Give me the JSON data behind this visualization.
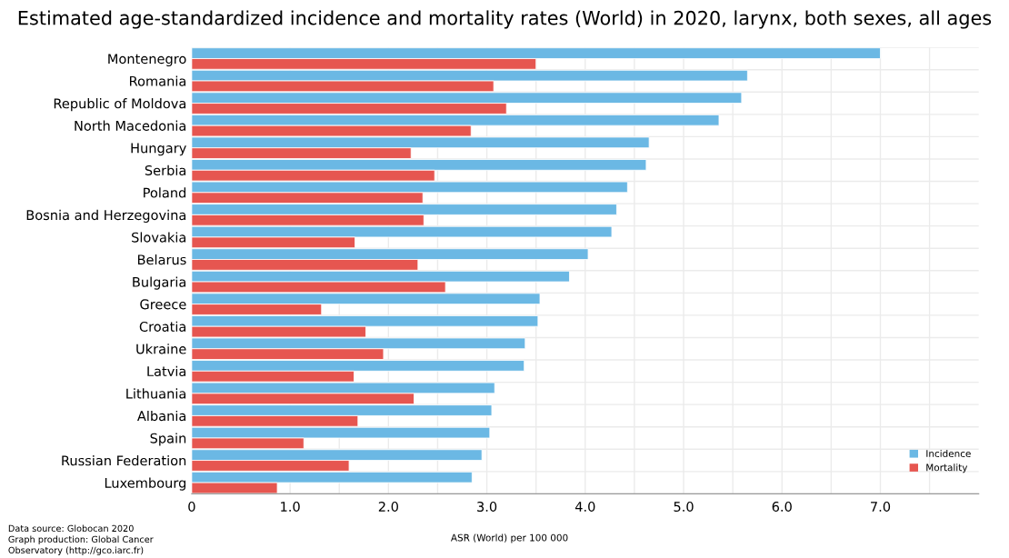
{
  "chart_data": {
    "type": "bar",
    "orientation": "horizontal",
    "title": "Estimated age-standardized incidence and mortality rates (World) in 2020, larynx, both sexes, all ages",
    "xlabel": "ASR (World) per 100 000",
    "categories": [
      "Montenegro",
      "Romania",
      "Republic of Moldova",
      "North Macedonia",
      "Hungary",
      "Serbia",
      "Poland",
      "Bosnia and Herzegovina",
      "Slovakia",
      "Belarus",
      "Bulgaria",
      "Greece",
      "Croatia",
      "Ukraine",
      "Latvia",
      "Lithuania",
      "Albania",
      "Spain",
      "Russian Federation",
      "Luxembourg"
    ],
    "series": [
      {
        "name": "Incidence",
        "color": "#6bb8e4",
        "values": [
          7.0,
          5.65,
          5.59,
          5.36,
          4.65,
          4.62,
          4.43,
          4.32,
          4.27,
          4.03,
          3.84,
          3.54,
          3.52,
          3.39,
          3.38,
          3.08,
          3.05,
          3.03,
          2.95,
          2.85
        ]
      },
      {
        "name": "Mortality",
        "color": "#e65650",
        "values": [
          3.5,
          3.07,
          3.2,
          2.84,
          2.23,
          2.47,
          2.35,
          2.36,
          1.66,
          2.3,
          2.58,
          1.32,
          1.77,
          1.95,
          1.65,
          2.26,
          1.69,
          1.14,
          1.6,
          0.87
        ]
      }
    ],
    "xlim": [
      0,
      8
    ],
    "xticks": [
      0,
      {
        "value": 1,
        "label": "1.0"
      },
      {
        "value": 1.5,
        "label": null
      },
      {
        "value": 2,
        "label": "2.0"
      },
      {
        "value": 2.5,
        "label": null
      },
      {
        "value": 3,
        "label": "3.0"
      },
      {
        "value": 3.5,
        "label": null
      },
      {
        "value": 4,
        "label": "4.0"
      },
      {
        "value": 4.5,
        "label": null
      },
      {
        "value": 5,
        "label": "5.0"
      },
      {
        "value": 5.5,
        "label": null
      },
      {
        "value": 6,
        "label": "6.0"
      },
      {
        "value": 6.5,
        "label": null
      },
      {
        "value": 7,
        "label": "7.0"
      },
      {
        "value": 7.5,
        "label": null
      }
    ],
    "grid": true,
    "legend": "bottom right",
    "annotations": [
      "Data source: Globocan 2020\nGraph production: Global Cancer\nObservatory (http://gco.iarc.fr)"
    ]
  }
}
